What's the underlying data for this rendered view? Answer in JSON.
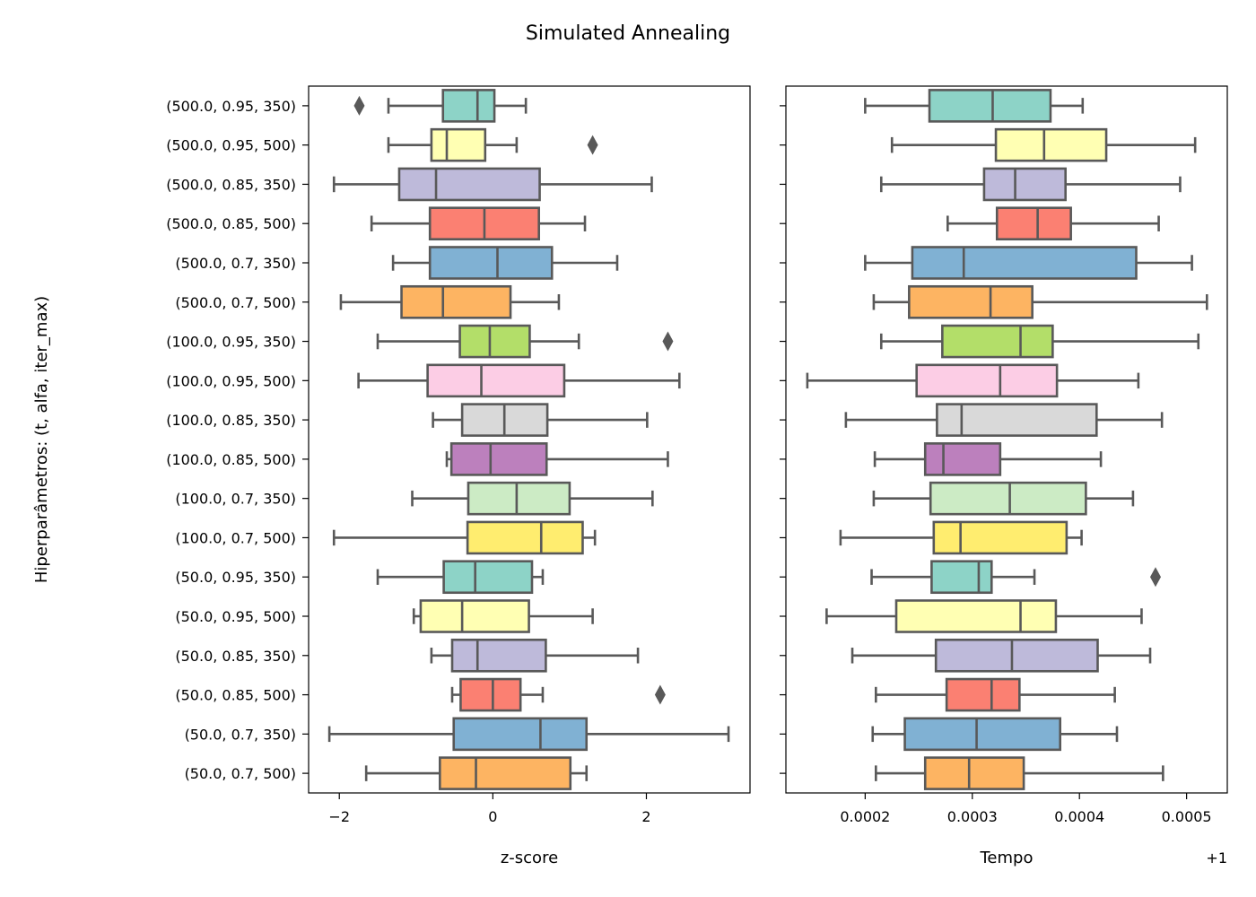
{
  "figure": {
    "title": "Simulated Annealing",
    "ylabel": "Hiperparâmetros: (t, alfa, iter_max)",
    "box_edge_color": "#595959"
  },
  "chart_data": [
    {
      "type": "boxplot",
      "orientation": "horizontal",
      "xlabel": "z-score",
      "xlim": [
        -2.4,
        3.35
      ],
      "xticks": [
        -2,
        0,
        2
      ],
      "xtick_labels": [
        "−2",
        "0",
        "2"
      ],
      "offset_text": "",
      "grid": false,
      "categories": [
        "(500.0, 0.95, 350)",
        "(500.0, 0.95, 500)",
        "(500.0, 0.85, 350)",
        "(500.0, 0.85, 500)",
        "(500.0, 0.7, 350)",
        "(500.0, 0.7, 500)",
        "(100.0, 0.95, 350)",
        "(100.0, 0.95, 500)",
        "(100.0, 0.85, 350)",
        "(100.0, 0.85, 500)",
        "(100.0, 0.7, 350)",
        "(100.0, 0.7, 500)",
        "(50.0, 0.95, 350)",
        "(50.0, 0.95, 500)",
        "(50.0, 0.85, 350)",
        "(50.0, 0.85, 500)",
        "(50.0, 0.7, 350)",
        "(50.0, 0.7, 500)"
      ],
      "colors": [
        "#8dd3c7",
        "#ffffb3",
        "#bebada",
        "#fb8072",
        "#80b1d3",
        "#fdb462",
        "#b3de69",
        "#fccde5",
        "#d9d9d9",
        "#bc80bd",
        "#ccebc5",
        "#ffed6f",
        "#8dd3c7",
        "#ffffb3",
        "#bebada",
        "#fb8072",
        "#80b1d3",
        "#fdb462"
      ],
      "boxes": [
        {
          "whislo": -1.36,
          "q1": -0.65,
          "med": -0.2,
          "q3": 0.02,
          "whishi": 0.43,
          "fliers": [
            -1.74
          ]
        },
        {
          "whislo": -1.36,
          "q1": -0.8,
          "med": -0.6,
          "q3": -0.1,
          "whishi": 0.31,
          "fliers": [
            1.3
          ]
        },
        {
          "whislo": -2.07,
          "q1": -1.22,
          "med": -0.74,
          "q3": 0.61,
          "whishi": 2.07,
          "fliers": []
        },
        {
          "whislo": -1.58,
          "q1": -0.82,
          "med": -0.11,
          "q3": 0.6,
          "whishi": 1.2,
          "fliers": []
        },
        {
          "whislo": -1.3,
          "q1": -0.82,
          "med": 0.06,
          "q3": 0.77,
          "whishi": 1.62,
          "fliers": []
        },
        {
          "whislo": -1.98,
          "q1": -1.19,
          "med": -0.65,
          "q3": 0.23,
          "whishi": 0.86,
          "fliers": []
        },
        {
          "whislo": -1.5,
          "q1": -0.43,
          "med": -0.04,
          "q3": 0.48,
          "whishi": 1.12,
          "fliers": [
            2.28
          ]
        },
        {
          "whislo": -1.75,
          "q1": -0.85,
          "med": -0.15,
          "q3": 0.93,
          "whishi": 2.43,
          "fliers": []
        },
        {
          "whislo": -0.78,
          "q1": -0.4,
          "med": 0.15,
          "q3": 0.71,
          "whishi": 2.01,
          "fliers": []
        },
        {
          "whislo": -0.6,
          "q1": -0.54,
          "med": -0.03,
          "q3": 0.7,
          "whishi": 2.28,
          "fliers": []
        },
        {
          "whislo": -1.05,
          "q1": -0.32,
          "med": 0.31,
          "q3": 1.0,
          "whishi": 2.08,
          "fliers": []
        },
        {
          "whislo": -2.07,
          "q1": -0.33,
          "med": 0.63,
          "q3": 1.17,
          "whishi": 1.33,
          "fliers": []
        },
        {
          "whislo": -1.5,
          "q1": -0.64,
          "med": -0.23,
          "q3": 0.51,
          "whishi": 0.65,
          "fliers": []
        },
        {
          "whislo": -1.03,
          "q1": -0.94,
          "med": -0.4,
          "q3": 0.47,
          "whishi": 1.3,
          "fliers": []
        },
        {
          "whislo": -0.8,
          "q1": -0.53,
          "med": -0.2,
          "q3": 0.69,
          "whishi": 1.89,
          "fliers": []
        },
        {
          "whislo": -0.53,
          "q1": -0.42,
          "med": 0.0,
          "q3": 0.36,
          "whishi": 0.65,
          "fliers": [
            2.18
          ]
        },
        {
          "whislo": -2.13,
          "q1": -0.51,
          "med": 0.62,
          "q3": 1.22,
          "whishi": 3.07,
          "fliers": []
        },
        {
          "whislo": -1.65,
          "q1": -0.69,
          "med": -0.22,
          "q3": 1.01,
          "whishi": 1.22,
          "fliers": []
        }
      ]
    },
    {
      "type": "boxplot",
      "orientation": "horizontal",
      "xlabel": "Tempo",
      "offset_text": "+1",
      "value_offset": 1,
      "xlim": [
        0.000126,
        0.000538
      ],
      "xticks": [
        0.0002,
        0.0003,
        0.0004,
        0.0005
      ],
      "xtick_labels": [
        "0.0002",
        "0.0003",
        "0.0004",
        "0.0005"
      ],
      "grid": false,
      "boxes": [
        {
          "whislo": 0.0002,
          "q1": 0.00026,
          "med": 0.000319,
          "q3": 0.000373,
          "whishi": 0.000403,
          "fliers": []
        },
        {
          "whislo": 0.000225,
          "q1": 0.000322,
          "med": 0.000367,
          "q3": 0.000425,
          "whishi": 0.000508,
          "fliers": []
        },
        {
          "whislo": 0.000215,
          "q1": 0.000311,
          "med": 0.00034,
          "q3": 0.000387,
          "whishi": 0.000494,
          "fliers": []
        },
        {
          "whislo": 0.000277,
          "q1": 0.000323,
          "med": 0.000361,
          "q3": 0.000392,
          "whishi": 0.000474,
          "fliers": []
        },
        {
          "whislo": 0.0002,
          "q1": 0.000244,
          "med": 0.000292,
          "q3": 0.000453,
          "whishi": 0.000505,
          "fliers": []
        },
        {
          "whislo": 0.000208,
          "q1": 0.000241,
          "med": 0.000317,
          "q3": 0.000356,
          "whishi": 0.000519,
          "fliers": []
        },
        {
          "whislo": 0.000215,
          "q1": 0.000272,
          "med": 0.000345,
          "q3": 0.000375,
          "whishi": 0.000511,
          "fliers": []
        },
        {
          "whislo": 0.000146,
          "q1": 0.000248,
          "med": 0.000326,
          "q3": 0.000379,
          "whishi": 0.000455,
          "fliers": []
        },
        {
          "whislo": 0.000182,
          "q1": 0.000267,
          "med": 0.00029,
          "q3": 0.000416,
          "whishi": 0.000477,
          "fliers": []
        },
        {
          "whislo": 0.000209,
          "q1": 0.000256,
          "med": 0.000273,
          "q3": 0.000326,
          "whishi": 0.00042,
          "fliers": []
        },
        {
          "whislo": 0.000208,
          "q1": 0.000261,
          "med": 0.000335,
          "q3": 0.000406,
          "whishi": 0.00045,
          "fliers": []
        },
        {
          "whislo": 0.000177,
          "q1": 0.000264,
          "med": 0.000289,
          "q3": 0.000388,
          "whishi": 0.000402,
          "fliers": []
        },
        {
          "whislo": 0.000206,
          "q1": 0.000262,
          "med": 0.000306,
          "q3": 0.000318,
          "whishi": 0.000358,
          "fliers": [
            0.000471
          ]
        },
        {
          "whislo": 0.000164,
          "q1": 0.000229,
          "med": 0.000345,
          "q3": 0.000378,
          "whishi": 0.000458,
          "fliers": []
        },
        {
          "whislo": 0.000188,
          "q1": 0.000266,
          "med": 0.000337,
          "q3": 0.000417,
          "whishi": 0.000466,
          "fliers": []
        },
        {
          "whislo": 0.00021,
          "q1": 0.000276,
          "med": 0.000318,
          "q3": 0.000344,
          "whishi": 0.000433,
          "fliers": []
        },
        {
          "whislo": 0.000207,
          "q1": 0.000237,
          "med": 0.000304,
          "q3": 0.000382,
          "whishi": 0.000435,
          "fliers": []
        },
        {
          "whislo": 0.00021,
          "q1": 0.000256,
          "med": 0.000297,
          "q3": 0.000348,
          "whishi": 0.000478,
          "fliers": []
        }
      ]
    }
  ]
}
